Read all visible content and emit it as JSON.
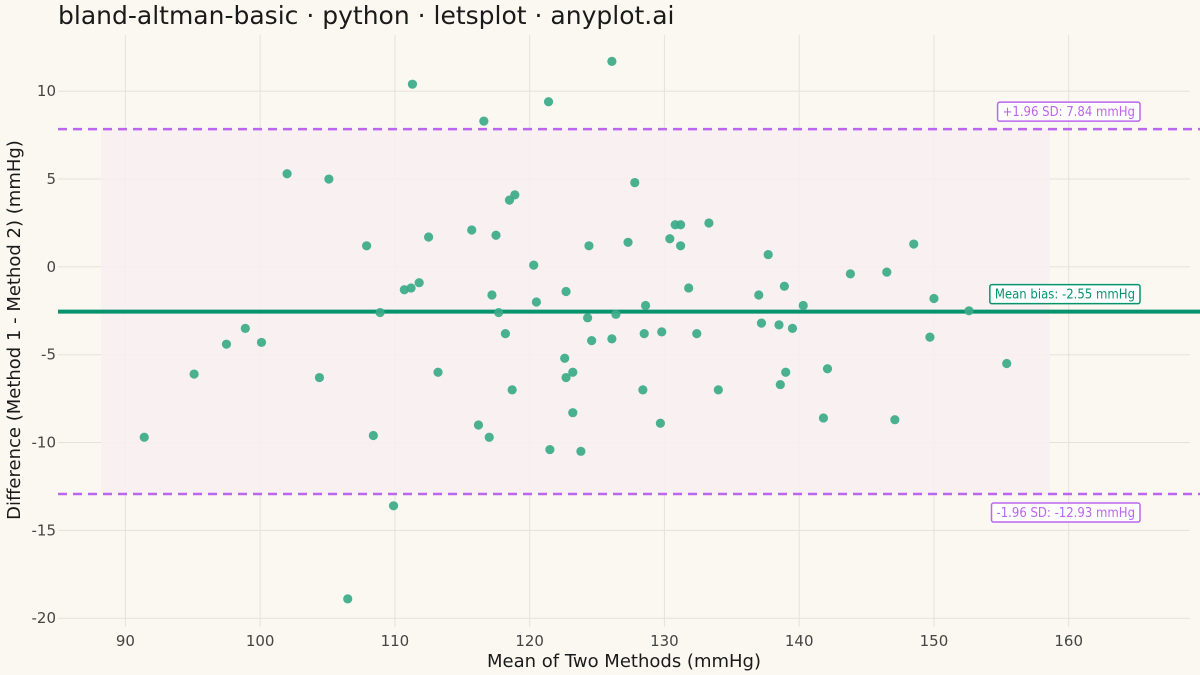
{
  "chart_data": {
    "type": "scatter",
    "title": "bland-altman-basic · python · letsplot · anyplot.ai",
    "xlabel": "Mean of Two Methods (mmHg)",
    "ylabel": "Difference (Method 1 - Method 2) (mmHg)",
    "xlim": [
      85,
      169
    ],
    "ylim": [
      -20.5,
      13.2
    ],
    "x_ticks": [
      90,
      100,
      110,
      120,
      130,
      140,
      150,
      160
    ],
    "y_ticks": [
      -20,
      -15,
      -10,
      -5,
      0,
      5,
      10
    ],
    "grid": true,
    "mean_bias": -2.55,
    "upper_loa": 7.84,
    "lower_loa": -12.93,
    "band_x_range": [
      88.2,
      158.6
    ],
    "annotations": {
      "upper": "+1.96 SD: 7.84 mmHg",
      "mean": "Mean bias: -2.55 mmHg",
      "lower": "-1.96 SD: -12.93 mmHg"
    },
    "colors": {
      "points": "#3AAA88",
      "mean_line": "#07936D",
      "loa_line": "#BB66EE",
      "band": "#F7EEF1",
      "grid": "#E5E2DA",
      "background": "#FAF8F1"
    },
    "points": [
      [
        91.4,
        -9.7
      ],
      [
        95.1,
        -6.1
      ],
      [
        97.5,
        -4.4
      ],
      [
        98.9,
        -3.5
      ],
      [
        100.1,
        -4.3
      ],
      [
        102.0,
        5.3
      ],
      [
        104.4,
        -6.3
      ],
      [
        105.1,
        5.0
      ],
      [
        106.5,
        -18.9
      ],
      [
        107.9,
        1.2
      ],
      [
        108.4,
        -9.6
      ],
      [
        108.9,
        -2.6
      ],
      [
        109.9,
        -13.6
      ],
      [
        110.7,
        -1.3
      ],
      [
        111.2,
        -1.2
      ],
      [
        111.3,
        10.4
      ],
      [
        111.8,
        -0.9
      ],
      [
        112.5,
        1.7
      ],
      [
        113.2,
        -6.0
      ],
      [
        115.7,
        2.1
      ],
      [
        116.2,
        -9.0
      ],
      [
        116.6,
        8.3
      ],
      [
        117.0,
        -9.7
      ],
      [
        117.2,
        -1.6
      ],
      [
        117.5,
        1.8
      ],
      [
        117.7,
        -2.6
      ],
      [
        118.2,
        -3.8
      ],
      [
        118.5,
        3.8
      ],
      [
        118.7,
        -7.0
      ],
      [
        118.9,
        4.1
      ],
      [
        120.3,
        0.1
      ],
      [
        120.5,
        -2.0
      ],
      [
        121.4,
        9.4
      ],
      [
        121.5,
        -10.4
      ],
      [
        122.6,
        -5.2
      ],
      [
        122.7,
        -6.3
      ],
      [
        122.7,
        -1.4
      ],
      [
        123.2,
        -6.0
      ],
      [
        123.2,
        -8.3
      ],
      [
        123.8,
        -10.5
      ],
      [
        124.3,
        -2.9
      ],
      [
        124.4,
        1.2
      ],
      [
        124.6,
        -4.2
      ],
      [
        126.1,
        -4.1
      ],
      [
        126.1,
        11.7
      ],
      [
        126.4,
        -2.7
      ],
      [
        127.3,
        1.4
      ],
      [
        127.8,
        4.8
      ],
      [
        128.4,
        -7.0
      ],
      [
        128.5,
        -3.8
      ],
      [
        128.6,
        -2.2
      ],
      [
        129.7,
        -8.9
      ],
      [
        129.8,
        -3.7
      ],
      [
        130.4,
        1.6
      ],
      [
        130.8,
        2.4
      ],
      [
        131.2,
        2.4
      ],
      [
        131.2,
        1.2
      ],
      [
        131.8,
        -1.2
      ],
      [
        132.4,
        -3.8
      ],
      [
        133.3,
        2.5
      ],
      [
        134.0,
        -7.0
      ],
      [
        137.0,
        -1.6
      ],
      [
        137.2,
        -3.2
      ],
      [
        137.7,
        0.7
      ],
      [
        138.5,
        -3.3
      ],
      [
        138.6,
        -6.7
      ],
      [
        138.9,
        -1.1
      ],
      [
        139.0,
        -6.0
      ],
      [
        139.5,
        -3.5
      ],
      [
        140.3,
        -2.2
      ],
      [
        141.8,
        -8.6
      ],
      [
        142.1,
        -5.8
      ],
      [
        143.8,
        -0.4
      ],
      [
        146.5,
        -0.3
      ],
      [
        147.1,
        -8.7
      ],
      [
        148.5,
        1.3
      ],
      [
        149.7,
        -4.0
      ],
      [
        150.0,
        -1.8
      ],
      [
        152.6,
        -2.5
      ],
      [
        155.4,
        -5.5
      ]
    ]
  }
}
